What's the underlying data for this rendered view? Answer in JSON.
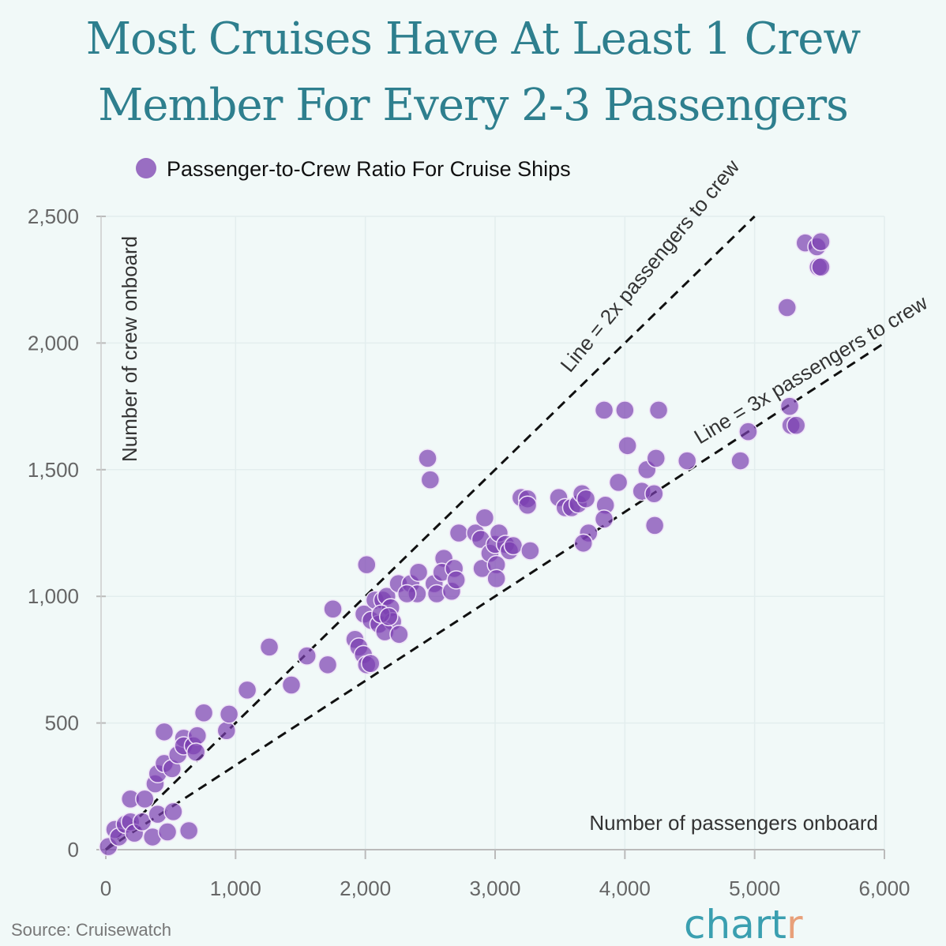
{
  "title": "Most Cruises Have At Least 1 Crew Member For Every 2-3 Passengers",
  "title_lines": [
    "Most Cruises Have At Least 1 Crew",
    "Member For Every 2-3 Passengers"
  ],
  "source": "Source: Cruisewatch",
  "logo": {
    "main": "chart",
    "accent": "r"
  },
  "colors": {
    "title": "#2e7f8e",
    "point": "#7b3fb0",
    "logo_main": "#3a9fb0",
    "logo_accent": "#e8a07a",
    "background": "#f1f9f8"
  },
  "chart_data": {
    "type": "scatter",
    "title": "Most Cruises Have At Least 1 Crew Member For Every 2-3 Passengers",
    "xlabel": "Number of passengers onboard",
    "ylabel": "Number of crew onboard",
    "xlim": [
      0,
      6000
    ],
    "ylim": [
      0,
      2500
    ],
    "xticks": [
      "0",
      "1,000",
      "2,000",
      "3,000",
      "4,000",
      "5,000",
      "6,000"
    ],
    "yticks": [
      "0",
      "500",
      "1,000",
      "1,500",
      "2,000",
      "2,500"
    ],
    "grid": true,
    "legend_position": "top-left",
    "series": [
      {
        "name": "Passenger-to-Crew Ratio For Cruise Ships",
        "points": [
          [
            20,
            12
          ],
          [
            70,
            80
          ],
          [
            100,
            50
          ],
          [
            150,
            100
          ],
          [
            190,
            110
          ],
          [
            220,
            65
          ],
          [
            280,
            110
          ],
          [
            190,
            200
          ],
          [
            300,
            200
          ],
          [
            360,
            50
          ],
          [
            400,
            140
          ],
          [
            475,
            70
          ],
          [
            520,
            150
          ],
          [
            640,
            75
          ],
          [
            380,
            260
          ],
          [
            400,
            300
          ],
          [
            450,
            340
          ],
          [
            510,
            320
          ],
          [
            450,
            465
          ],
          [
            555,
            375
          ],
          [
            600,
            440
          ],
          [
            600,
            410
          ],
          [
            675,
            410
          ],
          [
            705,
            450
          ],
          [
            695,
            385
          ],
          [
            755,
            540
          ],
          [
            930,
            470
          ],
          [
            950,
            535
          ],
          [
            1090,
            630
          ],
          [
            1260,
            800
          ],
          [
            1430,
            650
          ],
          [
            1550,
            765
          ],
          [
            1710,
            730
          ],
          [
            1750,
            950
          ],
          [
            2010,
            1125
          ],
          [
            1920,
            830
          ],
          [
            1950,
            800
          ],
          [
            1985,
            770
          ],
          [
            2010,
            730
          ],
          [
            2040,
            735
          ],
          [
            1990,
            930
          ],
          [
            2045,
            905
          ],
          [
            2075,
            985
          ],
          [
            2135,
            985
          ],
          [
            2165,
            1000
          ],
          [
            2195,
            955
          ],
          [
            2105,
            890
          ],
          [
            2210,
            900
          ],
          [
            2150,
            860
          ],
          [
            2260,
            850
          ],
          [
            2120,
            930
          ],
          [
            2180,
            920
          ],
          [
            2255,
            1050
          ],
          [
            2350,
            1050
          ],
          [
            2410,
            1095
          ],
          [
            2400,
            1010
          ],
          [
            2320,
            1010
          ],
          [
            2480,
            1545
          ],
          [
            2500,
            1460
          ],
          [
            2530,
            1050
          ],
          [
            2550,
            1010
          ],
          [
            2605,
            1150
          ],
          [
            2590,
            1095
          ],
          [
            2665,
            1020
          ],
          [
            2685,
            1110
          ],
          [
            2700,
            1065
          ],
          [
            2720,
            1250
          ],
          [
            2850,
            1250
          ],
          [
            2890,
            1225
          ],
          [
            2920,
            1310
          ],
          [
            2900,
            1110
          ],
          [
            2960,
            1170
          ],
          [
            3000,
            1205
          ],
          [
            3010,
            1125
          ],
          [
            3010,
            1070
          ],
          [
            3030,
            1250
          ],
          [
            3080,
            1205
          ],
          [
            3110,
            1180
          ],
          [
            3140,
            1200
          ],
          [
            3270,
            1180
          ],
          [
            3200,
            1390
          ],
          [
            3250,
            1385
          ],
          [
            3250,
            1360
          ],
          [
            3490,
            1390
          ],
          [
            3540,
            1350
          ],
          [
            3590,
            1350
          ],
          [
            3640,
            1365
          ],
          [
            3670,
            1405
          ],
          [
            3700,
            1385
          ],
          [
            3720,
            1250
          ],
          [
            3680,
            1210
          ],
          [
            3840,
            1735
          ],
          [
            3850,
            1360
          ],
          [
            3840,
            1305
          ],
          [
            3950,
            1450
          ],
          [
            4000,
            1735
          ],
          [
            4020,
            1595
          ],
          [
            4130,
            1415
          ],
          [
            4170,
            1500
          ],
          [
            4225,
            1405
          ],
          [
            4240,
            1545
          ],
          [
            4230,
            1280
          ],
          [
            4260,
            1735
          ],
          [
            4480,
            1535
          ],
          [
            4890,
            1535
          ],
          [
            4950,
            1650
          ],
          [
            5250,
            2140
          ],
          [
            5270,
            1750
          ],
          [
            5280,
            1675
          ],
          [
            5320,
            1675
          ],
          [
            5390,
            2395
          ],
          [
            5480,
            2380
          ],
          [
            5510,
            2400
          ],
          [
            5490,
            2300
          ],
          [
            5510,
            2300
          ]
        ]
      }
    ],
    "reference_lines": [
      {
        "label": "Line = 2x passengers to crew",
        "from": [
          0,
          0
        ],
        "to": [
          5000,
          2500
        ]
      },
      {
        "label": "Line = 3x passengers to crew",
        "from": [
          0,
          0
        ],
        "to": [
          6000,
          2000
        ]
      }
    ]
  }
}
